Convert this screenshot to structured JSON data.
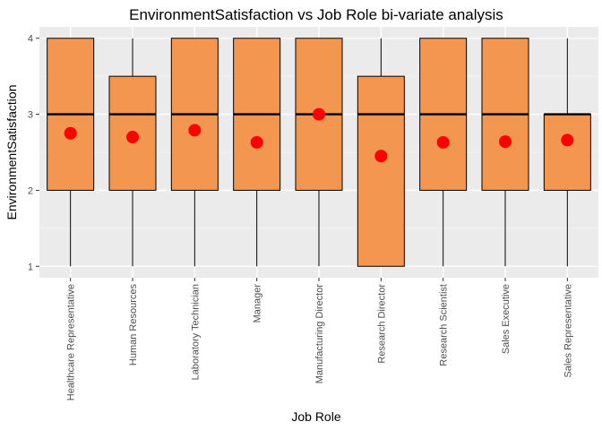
{
  "chart_data": {
    "type": "boxplot",
    "title": "EnvironmentSatisfaction vs Job Role bi-variate analysis",
    "xlabel": "Job Role",
    "ylabel": "EnvironmentSatisfaction",
    "ylim": [
      0.85,
      4.15
    ],
    "yticks": [
      1,
      2,
      3,
      4
    ],
    "grid": true,
    "legend": "none",
    "categories": [
      "Healthcare Representative",
      "Human Resources",
      "Laboratory Technician",
      "Manager",
      "Manufacturing Director",
      "Research Director",
      "Research Scientist",
      "Sales Executive",
      "Sales Representative"
    ],
    "boxes": [
      {
        "min": 1,
        "q1": 2,
        "median": 3,
        "q3": 4,
        "max": 4,
        "mean": 2.75
      },
      {
        "min": 1,
        "q1": 2,
        "median": 3,
        "q3": 3.5,
        "max": 4,
        "mean": 2.7
      },
      {
        "min": 1,
        "q1": 2,
        "median": 3,
        "q3": 4,
        "max": 4,
        "mean": 2.79
      },
      {
        "min": 1,
        "q1": 2,
        "median": 3,
        "q3": 4,
        "max": 4,
        "mean": 2.63
      },
      {
        "min": 1,
        "q1": 2,
        "median": 3,
        "q3": 4,
        "max": 4,
        "mean": 3.0
      },
      {
        "min": 1,
        "q1": 1,
        "median": 3,
        "q3": 3.5,
        "max": 4,
        "mean": 2.45
      },
      {
        "min": 1,
        "q1": 2,
        "median": 3,
        "q3": 4,
        "max": 4,
        "mean": 2.63
      },
      {
        "min": 1,
        "q1": 2,
        "median": 3,
        "q3": 4,
        "max": 4,
        "mean": 2.64
      },
      {
        "min": 1,
        "q1": 2,
        "median": 3,
        "q3": 3,
        "max": 4,
        "mean": 2.66
      }
    ],
    "colors": {
      "box_fill": "#F29650",
      "box_stroke": "#000000",
      "mean_point": "#FF0000",
      "panel_bg": "#EBEBEB",
      "grid_major": "#FFFFFF",
      "grid_minor": "#F5F5F5"
    }
  }
}
